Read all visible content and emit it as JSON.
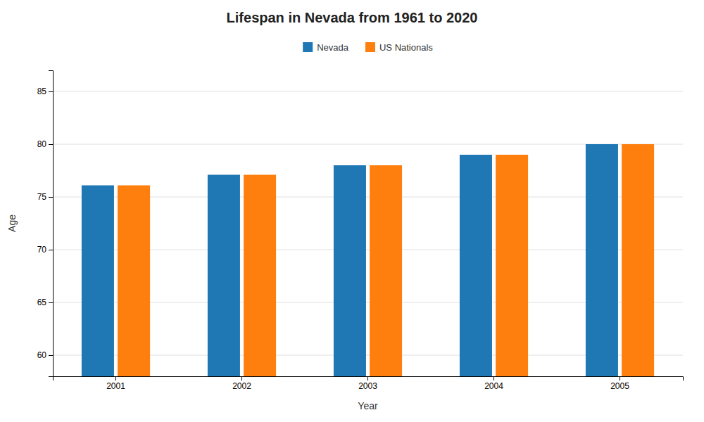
{
  "chart_data": {
    "type": "bar",
    "title": "Lifespan in Nevada from 1961 to 2020",
    "x_label": "Year",
    "y_label": "Age",
    "categories": [
      "2001",
      "2002",
      "2003",
      "2004",
      "2005"
    ],
    "series": [
      {
        "name": "Nevada",
        "values": [
          76.1,
          77.1,
          78.0,
          79.0,
          80.0
        ]
      },
      {
        "name": "US Nationals",
        "values": [
          76.1,
          77.1,
          78.0,
          79.0,
          80.0
        ]
      }
    ],
    "ylim": [
      58,
      87
    ],
    "yticks": [
      60,
      65,
      70,
      75,
      80,
      85
    ],
    "grid": true,
    "legend": "top"
  }
}
